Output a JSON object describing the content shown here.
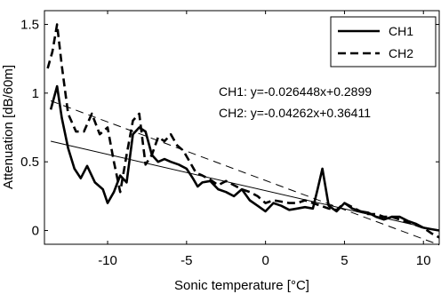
{
  "chart_data": {
    "type": "line",
    "title": "",
    "xlabel": "Sonic temperature [°C]",
    "ylabel": "Attenuation [dB/60m]",
    "xlim": [
      -14,
      11
    ],
    "ylim": [
      -0.1,
      1.6
    ],
    "xticks": [
      -10,
      -5,
      0,
      5,
      10
    ],
    "xtick_labels": [
      "-10",
      "-5",
      "0",
      "5",
      "10"
    ],
    "yticks": [
      0,
      0.5,
      1,
      1.5
    ],
    "ytick_labels": [
      "0",
      "0.5",
      "1",
      "1.5"
    ],
    "grid": false,
    "legend_position": "top-right",
    "series": [
      {
        "name": "CH1",
        "style": "solid",
        "color": "#000000",
        "x": [
          -13.6,
          -13.2,
          -12.9,
          -12.5,
          -12.1,
          -11.7,
          -11.3,
          -10.8,
          -10.3,
          -10.0,
          -9.6,
          -9.2,
          -8.8,
          -8.4,
          -8.0,
          -7.6,
          -7.2,
          -6.8,
          -6.4,
          -6.0,
          -5.5,
          -5.0,
          -4.6,
          -4.3,
          -4.0,
          -3.5,
          -3.0,
          -2.5,
          -2.0,
          -1.5,
          -1.0,
          -0.5,
          0.0,
          0.5,
          1.0,
          1.5,
          2.0,
          2.5,
          3.0,
          3.3,
          3.6,
          4.0,
          4.5,
          5.0,
          5.5,
          6.0,
          6.5,
          7.0,
          7.5,
          8.0,
          8.5,
          9.0,
          9.5,
          10.0,
          10.5,
          11.0
        ],
        "values": [
          0.88,
          1.05,
          0.82,
          0.6,
          0.45,
          0.38,
          0.47,
          0.35,
          0.3,
          0.2,
          0.28,
          0.4,
          0.35,
          0.7,
          0.75,
          0.72,
          0.55,
          0.5,
          0.52,
          0.5,
          0.48,
          0.45,
          0.38,
          0.32,
          0.35,
          0.36,
          0.3,
          0.28,
          0.25,
          0.3,
          0.22,
          0.18,
          0.14,
          0.2,
          0.18,
          0.15,
          0.16,
          0.17,
          0.16,
          0.3,
          0.45,
          0.18,
          0.14,
          0.2,
          0.16,
          0.14,
          0.13,
          0.1,
          0.08,
          0.1,
          0.1,
          0.07,
          0.05,
          0.02,
          0.01,
          0.0
        ]
      },
      {
        "name": "CH2",
        "style": "dashed",
        "color": "#000000",
        "x": [
          -13.8,
          -13.5,
          -13.2,
          -12.9,
          -12.5,
          -12.0,
          -11.5,
          -11.0,
          -10.5,
          -10.0,
          -9.6,
          -9.2,
          -8.8,
          -8.4,
          -8.0,
          -7.6,
          -7.2,
          -6.8,
          -6.4,
          -6.0,
          -5.6,
          -5.2,
          -4.8,
          -4.4,
          -4.0,
          -3.5,
          -3.0,
          -2.5,
          -2.0,
          -1.5,
          -1.0,
          -0.5,
          0.0,
          0.5,
          1.0,
          1.5,
          2.0,
          2.5,
          3.0,
          3.5,
          4.0,
          4.5,
          5.0,
          5.5,
          6.0,
          6.5,
          7.0,
          7.5,
          8.0,
          8.5,
          9.0,
          9.5,
          10.0,
          10.5,
          11.0
        ],
        "values": [
          1.18,
          1.3,
          1.5,
          1.2,
          0.85,
          0.72,
          0.72,
          0.85,
          0.7,
          0.75,
          0.5,
          0.28,
          0.55,
          0.8,
          0.85,
          0.48,
          0.55,
          0.68,
          0.65,
          0.7,
          0.62,
          0.58,
          0.5,
          0.42,
          0.4,
          0.37,
          0.33,
          0.36,
          0.33,
          0.3,
          0.28,
          0.25,
          0.2,
          0.22,
          0.21,
          0.2,
          0.2,
          0.22,
          0.2,
          0.18,
          0.16,
          0.15,
          0.2,
          0.17,
          0.14,
          0.12,
          0.12,
          0.1,
          0.1,
          0.08,
          0.06,
          0.04,
          0.02,
          -0.02,
          -0.05
        ]
      }
    ],
    "fits": [
      {
        "name": "CH1",
        "style": "solid",
        "slope": -0.026448,
        "intercept": 0.2899,
        "x_range": [
          -13.6,
          11.0
        ]
      },
      {
        "name": "CH2",
        "style": "dashed",
        "slope": -0.04262,
        "intercept": 0.36411,
        "x_range": [
          -13.6,
          11.0
        ]
      }
    ],
    "annotations": [
      "CH1: y=-0.026448x+0.2899",
      "CH2: y=-0.04262x+0.36411"
    ]
  }
}
